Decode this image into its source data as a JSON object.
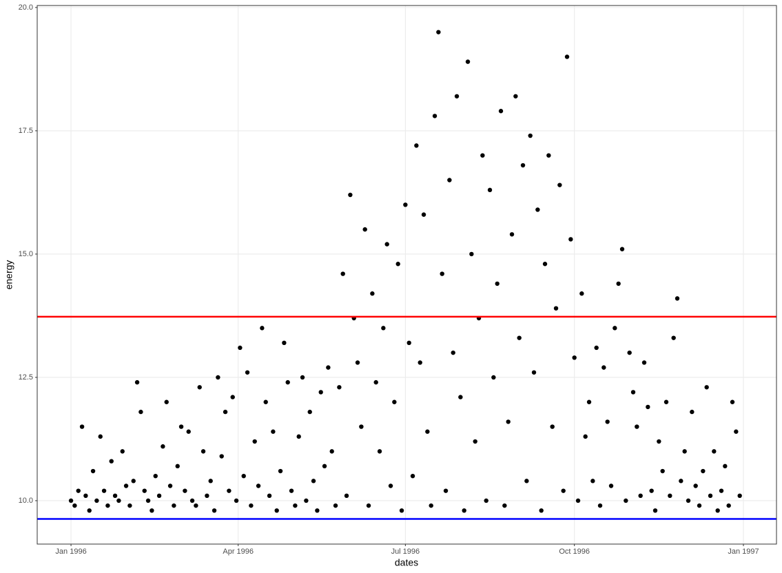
{
  "chart_data": {
    "type": "scatter",
    "x_label": "dates",
    "y_label": "energy",
    "xlim": [
      -18.4,
      384
    ],
    "ylim": [
      9.12,
      20.04
    ],
    "xticks": [
      {
        "value": 0,
        "label": "Jan 1996"
      },
      {
        "value": 91,
        "label": "Apr 1996"
      },
      {
        "value": 182,
        "label": "Jul 1996"
      },
      {
        "value": 274,
        "label": "Oct 1996"
      },
      {
        "value": 366,
        "label": "Jan 1997"
      }
    ],
    "yticks": [
      {
        "value": 10,
        "label": "10.0"
      },
      {
        "value": 12.5,
        "label": "12.5"
      },
      {
        "value": 15,
        "label": "15.0"
      },
      {
        "value": 17.5,
        "label": "17.5"
      },
      {
        "value": 20,
        "label": "20.0"
      }
    ],
    "grid": true,
    "color": "#000000",
    "hlines": [
      {
        "value": 13.73,
        "color": "#ff0000"
      },
      {
        "value": 9.63,
        "color": "#0000ff"
      }
    ],
    "x": [
      0,
      2,
      4,
      6,
      8,
      10,
      12,
      14,
      16,
      18,
      20,
      22,
      24,
      26,
      28,
      30,
      32,
      34,
      36,
      38,
      40,
      42,
      44,
      46,
      48,
      50,
      52,
      54,
      56,
      58,
      60,
      62,
      64,
      66,
      68,
      70,
      72,
      74,
      76,
      78,
      80,
      82,
      84,
      86,
      88,
      90,
      92,
      94,
      96,
      98,
      100,
      102,
      104,
      106,
      108,
      110,
      112,
      114,
      116,
      118,
      120,
      122,
      124,
      126,
      128,
      130,
      132,
      134,
      136,
      138,
      140,
      142,
      144,
      146,
      148,
      150,
      152,
      154,
      156,
      158,
      160,
      162,
      164,
      166,
      168,
      170,
      172,
      174,
      176,
      178,
      180,
      182,
      184,
      186,
      188,
      190,
      192,
      194,
      196,
      198,
      200,
      202,
      204,
      206,
      208,
      210,
      212,
      214,
      216,
      218,
      220,
      222,
      224,
      226,
      228,
      230,
      232,
      234,
      236,
      238,
      240,
      242,
      244,
      246,
      248,
      250,
      252,
      254,
      256,
      258,
      260,
      262,
      264,
      266,
      268,
      270,
      272,
      274,
      276,
      278,
      280,
      282,
      284,
      286,
      288,
      290,
      292,
      294,
      296,
      298,
      300,
      302,
      304,
      306,
      308,
      310,
      312,
      314,
      316,
      318,
      320,
      322,
      324,
      326,
      328,
      330,
      332,
      334,
      336,
      338,
      340,
      342,
      344,
      346,
      348,
      350,
      352,
      354,
      356,
      358,
      360,
      362,
      364
    ],
    "values": [
      10.0,
      9.9,
      10.2,
      11.5,
      10.1,
      9.8,
      10.6,
      10.0,
      11.3,
      10.2,
      9.9,
      10.8,
      10.1,
      10.0,
      11.0,
      10.3,
      9.9,
      10.4,
      12.4,
      11.8,
      10.2,
      10.0,
      9.8,
      10.5,
      10.1,
      11.1,
      12.0,
      10.3,
      9.9,
      10.7,
      11.5,
      10.2,
      11.4,
      10.0,
      9.9,
      12.3,
      11.0,
      10.1,
      10.4,
      9.8,
      12.5,
      10.9,
      11.8,
      10.2,
      12.1,
      10.0,
      13.1,
      10.5,
      12.6,
      9.9,
      11.2,
      10.3,
      13.5,
      12.0,
      10.1,
      11.4,
      9.8,
      10.6,
      13.2,
      12.4,
      10.2,
      9.9,
      11.3,
      12.5,
      10.0,
      11.8,
      10.4,
      9.8,
      12.2,
      10.7,
      12.7,
      11.0,
      9.9,
      12.3,
      14.6,
      10.1,
      16.2,
      13.7,
      12.8,
      11.5,
      15.5,
      9.9,
      14.2,
      12.4,
      11.0,
      13.5,
      15.2,
      10.3,
      12.0,
      14.8,
      9.8,
      16.0,
      13.2,
      10.5,
      17.2,
      12.8,
      15.8,
      11.4,
      9.9,
      17.8,
      19.5,
      14.6,
      10.2,
      16.5,
      13.0,
      18.2,
      12.1,
      9.8,
      18.9,
      15.0,
      11.2,
      13.7,
      17.0,
      10.0,
      16.3,
      12.5,
      14.4,
      17.9,
      9.9,
      11.6,
      15.4,
      18.2,
      13.3,
      16.8,
      10.4,
      17.4,
      12.6,
      15.9,
      9.8,
      14.8,
      17.0,
      11.5,
      13.9,
      16.4,
      10.2,
      19.0,
      15.3,
      12.9,
      10.0,
      14.2,
      11.3,
      12.0,
      10.4,
      13.1,
      9.9,
      12.7,
      11.6,
      10.3,
      13.5,
      14.4,
      15.1,
      10.0,
      13.0,
      12.2,
      11.5,
      10.1,
      12.8,
      11.9,
      10.2,
      9.8,
      11.2,
      10.6,
      12.0,
      10.1,
      13.3,
      14.1,
      10.4,
      11.0,
      10.0,
      11.8,
      10.3,
      9.9,
      10.6,
      12.3,
      10.1,
      11.0,
      9.8,
      10.2,
      10.7,
      9.9,
      12.0,
      11.4,
      10.1
    ]
  }
}
